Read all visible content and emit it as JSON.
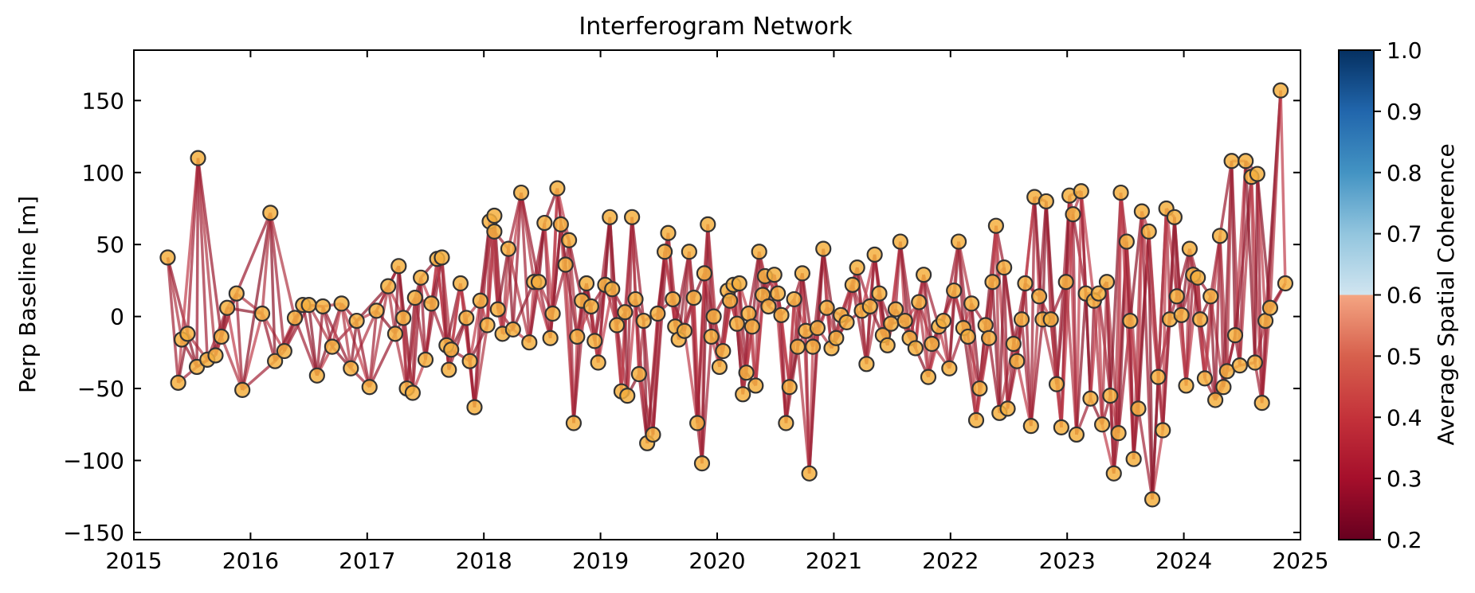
{
  "chart_data": {
    "type": "scatter",
    "title": "Interferogram Network",
    "xlabel": "",
    "ylabel": "Perp Baseline [m]",
    "x_ticks": [
      "2015",
      "2016",
      "2017",
      "2018",
      "2019",
      "2020",
      "2021",
      "2022",
      "2023",
      "2024",
      "2025"
    ],
    "y_ticks": [
      "150",
      "100",
      "50",
      "0",
      "−50",
      "−100",
      "−150"
    ],
    "xlim": [
      2015.0,
      2025.0
    ],
    "ylim": [
      -155,
      185
    ],
    "grid": false,
    "colorbar": {
      "label": "Average Spatial Coherence",
      "ticks": [
        "1.0",
        "0.9",
        "0.8",
        "0.7",
        "0.6",
        "0.5",
        "0.4",
        "0.3",
        "0.2"
      ],
      "range": [
        0.2,
        1.0
      ],
      "colormap": "RdBu"
    },
    "marker_color": "#f5b041",
    "marker_edge_color": "#333333",
    "acquisitions": [
      {
        "date": 2015.29,
        "bperp": 41
      },
      {
        "date": 2015.38,
        "bperp": -46
      },
      {
        "date": 2015.41,
        "bperp": -16
      },
      {
        "date": 2015.46,
        "bperp": -12
      },
      {
        "date": 2015.54,
        "bperp": -35
      },
      {
        "date": 2015.55,
        "bperp": 110
      },
      {
        "date": 2015.63,
        "bperp": -30
      },
      {
        "date": 2015.7,
        "bperp": -27
      },
      {
        "date": 2015.75,
        "bperp": -14
      },
      {
        "date": 2015.8,
        "bperp": 6
      },
      {
        "date": 2015.88,
        "bperp": 16
      },
      {
        "date": 2015.93,
        "bperp": -51
      },
      {
        "date": 2016.1,
        "bperp": 2
      },
      {
        "date": 2016.17,
        "bperp": 72
      },
      {
        "date": 2016.21,
        "bperp": -31
      },
      {
        "date": 2016.29,
        "bperp": -24
      },
      {
        "date": 2016.38,
        "bperp": -1
      },
      {
        "date": 2016.45,
        "bperp": 8
      },
      {
        "date": 2016.5,
        "bperp": 8
      },
      {
        "date": 2016.57,
        "bperp": -41
      },
      {
        "date": 2016.62,
        "bperp": 7
      },
      {
        "date": 2016.7,
        "bperp": -21
      },
      {
        "date": 2016.78,
        "bperp": 9
      },
      {
        "date": 2016.86,
        "bperp": -36
      },
      {
        "date": 2016.91,
        "bperp": -3
      },
      {
        "date": 2017.02,
        "bperp": -49
      },
      {
        "date": 2017.08,
        "bperp": 4
      },
      {
        "date": 2017.18,
        "bperp": 21
      },
      {
        "date": 2017.24,
        "bperp": -12
      },
      {
        "date": 2017.27,
        "bperp": 35
      },
      {
        "date": 2017.31,
        "bperp": -1
      },
      {
        "date": 2017.34,
        "bperp": -50
      },
      {
        "date": 2017.39,
        "bperp": -53
      },
      {
        "date": 2017.41,
        "bperp": 13
      },
      {
        "date": 2017.46,
        "bperp": 27
      },
      {
        "date": 2017.5,
        "bperp": -30
      },
      {
        "date": 2017.55,
        "bperp": 9
      },
      {
        "date": 2017.6,
        "bperp": 40
      },
      {
        "date": 2017.64,
        "bperp": 41
      },
      {
        "date": 2017.68,
        "bperp": -20
      },
      {
        "date": 2017.72,
        "bperp": -23
      },
      {
        "date": 2017.7,
        "bperp": -37
      },
      {
        "date": 2017.8,
        "bperp": 23
      },
      {
        "date": 2017.85,
        "bperp": -1
      },
      {
        "date": 2017.88,
        "bperp": -31
      },
      {
        "date": 2017.92,
        "bperp": -63
      },
      {
        "date": 2017.97,
        "bperp": 11
      },
      {
        "date": 2018.03,
        "bperp": -6
      },
      {
        "date": 2018.05,
        "bperp": 66
      },
      {
        "date": 2018.09,
        "bperp": 70
      },
      {
        "date": 2018.09,
        "bperp": 59
      },
      {
        "date": 2018.12,
        "bperp": 5
      },
      {
        "date": 2018.16,
        "bperp": -12
      },
      {
        "date": 2018.21,
        "bperp": 47
      },
      {
        "date": 2018.25,
        "bperp": -9
      },
      {
        "date": 2018.32,
        "bperp": 86
      },
      {
        "date": 2018.39,
        "bperp": -18
      },
      {
        "date": 2018.43,
        "bperp": 24
      },
      {
        "date": 2018.47,
        "bperp": 24
      },
      {
        "date": 2018.52,
        "bperp": 65
      },
      {
        "date": 2018.57,
        "bperp": -15
      },
      {
        "date": 2018.59,
        "bperp": 2
      },
      {
        "date": 2018.63,
        "bperp": 89
      },
      {
        "date": 2018.66,
        "bperp": 64
      },
      {
        "date": 2018.7,
        "bperp": 36
      },
      {
        "date": 2018.73,
        "bperp": 53
      },
      {
        "date": 2018.77,
        "bperp": -74
      },
      {
        "date": 2018.8,
        "bperp": -14
      },
      {
        "date": 2018.84,
        "bperp": 11
      },
      {
        "date": 2018.88,
        "bperp": 23
      },
      {
        "date": 2018.92,
        "bperp": 7
      },
      {
        "date": 2018.95,
        "bperp": -17
      },
      {
        "date": 2018.98,
        "bperp": -32
      },
      {
        "date": 2019.04,
        "bperp": 22
      },
      {
        "date": 2019.08,
        "bperp": 69
      },
      {
        "date": 2019.1,
        "bperp": 19
      },
      {
        "date": 2019.14,
        "bperp": -6
      },
      {
        "date": 2019.18,
        "bperp": -52
      },
      {
        "date": 2019.21,
        "bperp": 3
      },
      {
        "date": 2019.23,
        "bperp": -55
      },
      {
        "date": 2019.27,
        "bperp": 69
      },
      {
        "date": 2019.3,
        "bperp": 12
      },
      {
        "date": 2019.33,
        "bperp": -40
      },
      {
        "date": 2019.37,
        "bperp": -3
      },
      {
        "date": 2019.4,
        "bperp": -88
      },
      {
        "date": 2019.45,
        "bperp": -82
      },
      {
        "date": 2019.49,
        "bperp": 2
      },
      {
        "date": 2019.55,
        "bperp": 45
      },
      {
        "date": 2019.58,
        "bperp": 58
      },
      {
        "date": 2019.62,
        "bperp": 12
      },
      {
        "date": 2019.64,
        "bperp": -7
      },
      {
        "date": 2019.67,
        "bperp": -16
      },
      {
        "date": 2019.72,
        "bperp": -10
      },
      {
        "date": 2019.76,
        "bperp": 45
      },
      {
        "date": 2019.8,
        "bperp": 13
      },
      {
        "date": 2019.83,
        "bperp": -74
      },
      {
        "date": 2019.87,
        "bperp": -102
      },
      {
        "date": 2019.89,
        "bperp": 30
      },
      {
        "date": 2019.92,
        "bperp": 64
      },
      {
        "date": 2019.95,
        "bperp": -14
      },
      {
        "date": 2019.97,
        "bperp": 0
      },
      {
        "date": 2020.02,
        "bperp": -35
      },
      {
        "date": 2020.05,
        "bperp": -24
      },
      {
        "date": 2020.09,
        "bperp": 18
      },
      {
        "date": 2020.11,
        "bperp": 11
      },
      {
        "date": 2020.14,
        "bperp": 22
      },
      {
        "date": 2020.17,
        "bperp": -5
      },
      {
        "date": 2020.19,
        "bperp": 23
      },
      {
        "date": 2020.22,
        "bperp": -54
      },
      {
        "date": 2020.25,
        "bperp": -39
      },
      {
        "date": 2020.27,
        "bperp": 2
      },
      {
        "date": 2020.3,
        "bperp": -7
      },
      {
        "date": 2020.33,
        "bperp": -48
      },
      {
        "date": 2020.36,
        "bperp": 45
      },
      {
        "date": 2020.39,
        "bperp": 15
      },
      {
        "date": 2020.41,
        "bperp": 28
      },
      {
        "date": 2020.44,
        "bperp": 7
      },
      {
        "date": 2020.49,
        "bperp": 29
      },
      {
        "date": 2020.52,
        "bperp": 16
      },
      {
        "date": 2020.55,
        "bperp": 1
      },
      {
        "date": 2020.59,
        "bperp": -74
      },
      {
        "date": 2020.62,
        "bperp": -49
      },
      {
        "date": 2020.66,
        "bperp": 12
      },
      {
        "date": 2020.69,
        "bperp": -21
      },
      {
        "date": 2020.73,
        "bperp": 30
      },
      {
        "date": 2020.76,
        "bperp": -10
      },
      {
        "date": 2020.79,
        "bperp": -109
      },
      {
        "date": 2020.82,
        "bperp": -21
      },
      {
        "date": 2020.86,
        "bperp": -8
      },
      {
        "date": 2020.91,
        "bperp": 47
      },
      {
        "date": 2020.94,
        "bperp": 6
      },
      {
        "date": 2020.98,
        "bperp": -22
      },
      {
        "date": 2021.02,
        "bperp": -15
      },
      {
        "date": 2021.06,
        "bperp": 1
      },
      {
        "date": 2021.11,
        "bperp": -4
      },
      {
        "date": 2021.16,
        "bperp": 22
      },
      {
        "date": 2021.2,
        "bperp": 34
      },
      {
        "date": 2021.24,
        "bperp": 4
      },
      {
        "date": 2021.28,
        "bperp": -33
      },
      {
        "date": 2021.31,
        "bperp": 7
      },
      {
        "date": 2021.35,
        "bperp": 43
      },
      {
        "date": 2021.39,
        "bperp": 16
      },
      {
        "date": 2021.42,
        "bperp": -13
      },
      {
        "date": 2021.46,
        "bperp": -20
      },
      {
        "date": 2021.49,
        "bperp": -5
      },
      {
        "date": 2021.53,
        "bperp": 5
      },
      {
        "date": 2021.57,
        "bperp": 52
      },
      {
        "date": 2021.61,
        "bperp": -3
      },
      {
        "date": 2021.65,
        "bperp": -15
      },
      {
        "date": 2021.7,
        "bperp": -22
      },
      {
        "date": 2021.73,
        "bperp": 10
      },
      {
        "date": 2021.77,
        "bperp": 29
      },
      {
        "date": 2021.81,
        "bperp": -42
      },
      {
        "date": 2021.84,
        "bperp": -19
      },
      {
        "date": 2021.9,
        "bperp": -7
      },
      {
        "date": 2021.94,
        "bperp": -3
      },
      {
        "date": 2021.99,
        "bperp": -36
      },
      {
        "date": 2022.03,
        "bperp": 18
      },
      {
        "date": 2022.07,
        "bperp": 52
      },
      {
        "date": 2022.11,
        "bperp": -8
      },
      {
        "date": 2022.15,
        "bperp": -14
      },
      {
        "date": 2022.18,
        "bperp": 9
      },
      {
        "date": 2022.22,
        "bperp": -72
      },
      {
        "date": 2022.25,
        "bperp": -50
      },
      {
        "date": 2022.3,
        "bperp": -6
      },
      {
        "date": 2022.33,
        "bperp": -15
      },
      {
        "date": 2022.36,
        "bperp": 24
      },
      {
        "date": 2022.39,
        "bperp": 63
      },
      {
        "date": 2022.42,
        "bperp": -67
      },
      {
        "date": 2022.46,
        "bperp": 34
      },
      {
        "date": 2022.49,
        "bperp": -64
      },
      {
        "date": 2022.54,
        "bperp": -19
      },
      {
        "date": 2022.57,
        "bperp": -31
      },
      {
        "date": 2022.61,
        "bperp": -2
      },
      {
        "date": 2022.64,
        "bperp": 23
      },
      {
        "date": 2022.69,
        "bperp": -76
      },
      {
        "date": 2022.72,
        "bperp": 83
      },
      {
        "date": 2022.76,
        "bperp": 14
      },
      {
        "date": 2022.79,
        "bperp": -2
      },
      {
        "date": 2022.82,
        "bperp": 80
      },
      {
        "date": 2022.86,
        "bperp": -2
      },
      {
        "date": 2022.91,
        "bperp": -47
      },
      {
        "date": 2022.95,
        "bperp": -77
      },
      {
        "date": 2022.99,
        "bperp": 24
      },
      {
        "date": 2023.02,
        "bperp": 84
      },
      {
        "date": 2023.05,
        "bperp": 71
      },
      {
        "date": 2023.08,
        "bperp": -82
      },
      {
        "date": 2023.12,
        "bperp": 87
      },
      {
        "date": 2023.16,
        "bperp": 16
      },
      {
        "date": 2023.2,
        "bperp": -57
      },
      {
        "date": 2023.23,
        "bperp": 11
      },
      {
        "date": 2023.27,
        "bperp": 16
      },
      {
        "date": 2023.3,
        "bperp": -75
      },
      {
        "date": 2023.34,
        "bperp": 24
      },
      {
        "date": 2023.37,
        "bperp": -55
      },
      {
        "date": 2023.4,
        "bperp": -109
      },
      {
        "date": 2023.44,
        "bperp": -81
      },
      {
        "date": 2023.46,
        "bperp": 86
      },
      {
        "date": 2023.51,
        "bperp": 52
      },
      {
        "date": 2023.54,
        "bperp": -3
      },
      {
        "date": 2023.57,
        "bperp": -99
      },
      {
        "date": 2023.61,
        "bperp": -64
      },
      {
        "date": 2023.64,
        "bperp": 73
      },
      {
        "date": 2023.7,
        "bperp": 59
      },
      {
        "date": 2023.73,
        "bperp": -127
      },
      {
        "date": 2023.78,
        "bperp": -42
      },
      {
        "date": 2023.82,
        "bperp": -79
      },
      {
        "date": 2023.85,
        "bperp": 75
      },
      {
        "date": 2023.88,
        "bperp": -2
      },
      {
        "date": 2023.92,
        "bperp": 69
      },
      {
        "date": 2023.94,
        "bperp": 14
      },
      {
        "date": 2023.98,
        "bperp": 1
      },
      {
        "date": 2024.02,
        "bperp": -48
      },
      {
        "date": 2024.05,
        "bperp": 47
      },
      {
        "date": 2024.08,
        "bperp": 29
      },
      {
        "date": 2024.12,
        "bperp": 27
      },
      {
        "date": 2024.14,
        "bperp": -2
      },
      {
        "date": 2024.18,
        "bperp": -43
      },
      {
        "date": 2024.23,
        "bperp": 14
      },
      {
        "date": 2024.27,
        "bperp": -58
      },
      {
        "date": 2024.31,
        "bperp": 56
      },
      {
        "date": 2024.34,
        "bperp": -49
      },
      {
        "date": 2024.37,
        "bperp": -38
      },
      {
        "date": 2024.41,
        "bperp": 108
      },
      {
        "date": 2024.44,
        "bperp": -13
      },
      {
        "date": 2024.48,
        "bperp": -34
      },
      {
        "date": 2024.53,
        "bperp": 108
      },
      {
        "date": 2024.58,
        "bperp": 97
      },
      {
        "date": 2024.61,
        "bperp": -32
      },
      {
        "date": 2024.63,
        "bperp": 99
      },
      {
        "date": 2024.67,
        "bperp": -60
      },
      {
        "date": 2024.7,
        "bperp": -3
      },
      {
        "date": 2024.74,
        "bperp": 6
      },
      {
        "date": 2024.83,
        "bperp": 157
      },
      {
        "date": 2024.87,
        "bperp": 23
      }
    ]
  }
}
